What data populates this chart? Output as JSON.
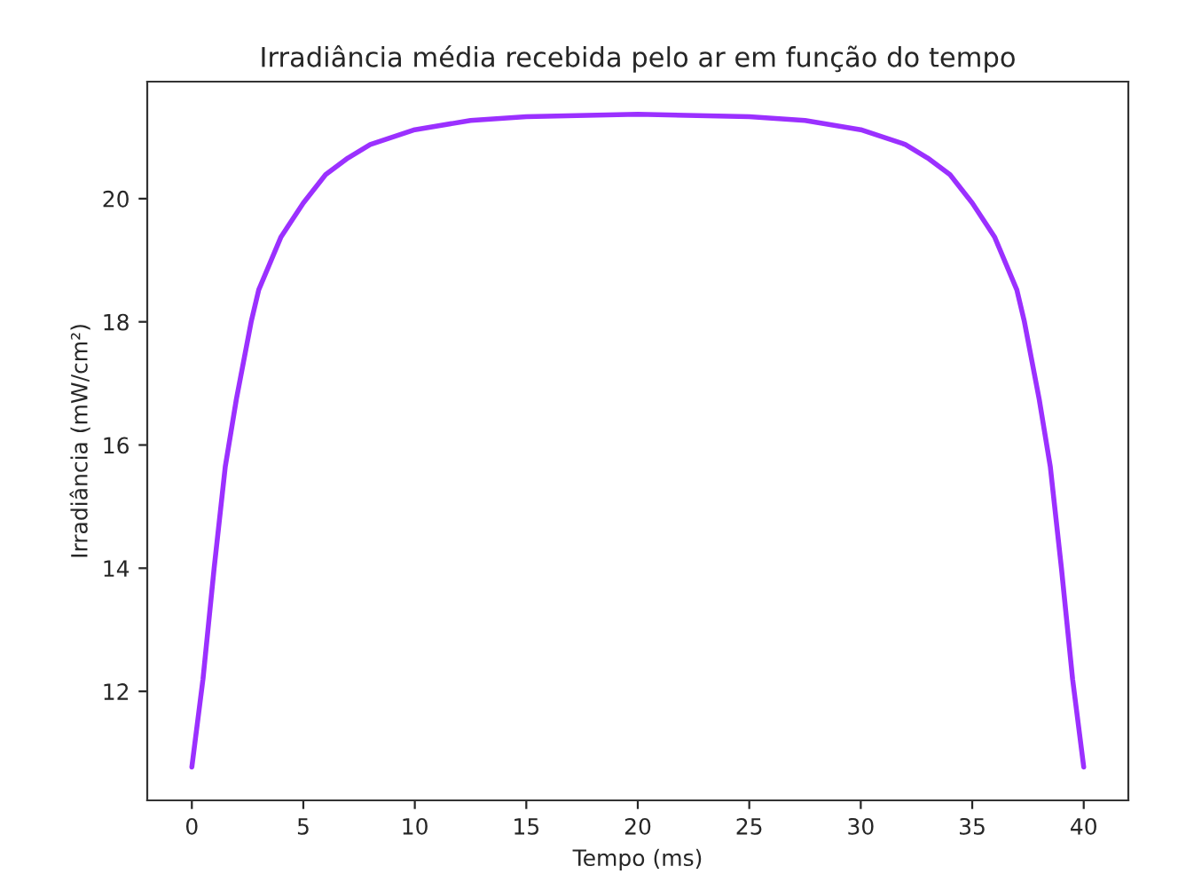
{
  "chart_data": {
    "type": "line",
    "title": "Irradiância média recebida pelo ar em função do tempo",
    "xlabel": "Tempo (ms)",
    "ylabel": "Irradiância (mW/cm²)",
    "xlim": [
      -2,
      42
    ],
    "ylim": [
      10.23,
      21.9
    ],
    "xticks": [
      0,
      5,
      10,
      15,
      20,
      25,
      30,
      35,
      40
    ],
    "yticks": [
      12,
      14,
      16,
      18,
      20
    ],
    "grid": false,
    "marker": "none",
    "line_style": "solid",
    "series": [
      {
        "color": "#9b30ff",
        "x": [
          0,
          0.5,
          1,
          1.5,
          2,
          2.66,
          3,
          4,
          5,
          6,
          7,
          8,
          10,
          12.5,
          15,
          20,
          25,
          27.5,
          30,
          32,
          33,
          34,
          35,
          36,
          37,
          37.34,
          38,
          38.5,
          39,
          39.5,
          40
        ],
        "values": [
          10.77,
          12.2,
          14.0,
          15.65,
          16.75,
          18.0,
          18.52,
          19.38,
          19.93,
          20.39,
          20.66,
          20.88,
          21.12,
          21.27,
          21.33,
          21.37,
          21.33,
          21.27,
          21.12,
          20.88,
          20.66,
          20.39,
          19.93,
          19.38,
          18.52,
          18.0,
          16.75,
          15.65,
          14.0,
          12.2,
          10.77
        ]
      }
    ]
  }
}
